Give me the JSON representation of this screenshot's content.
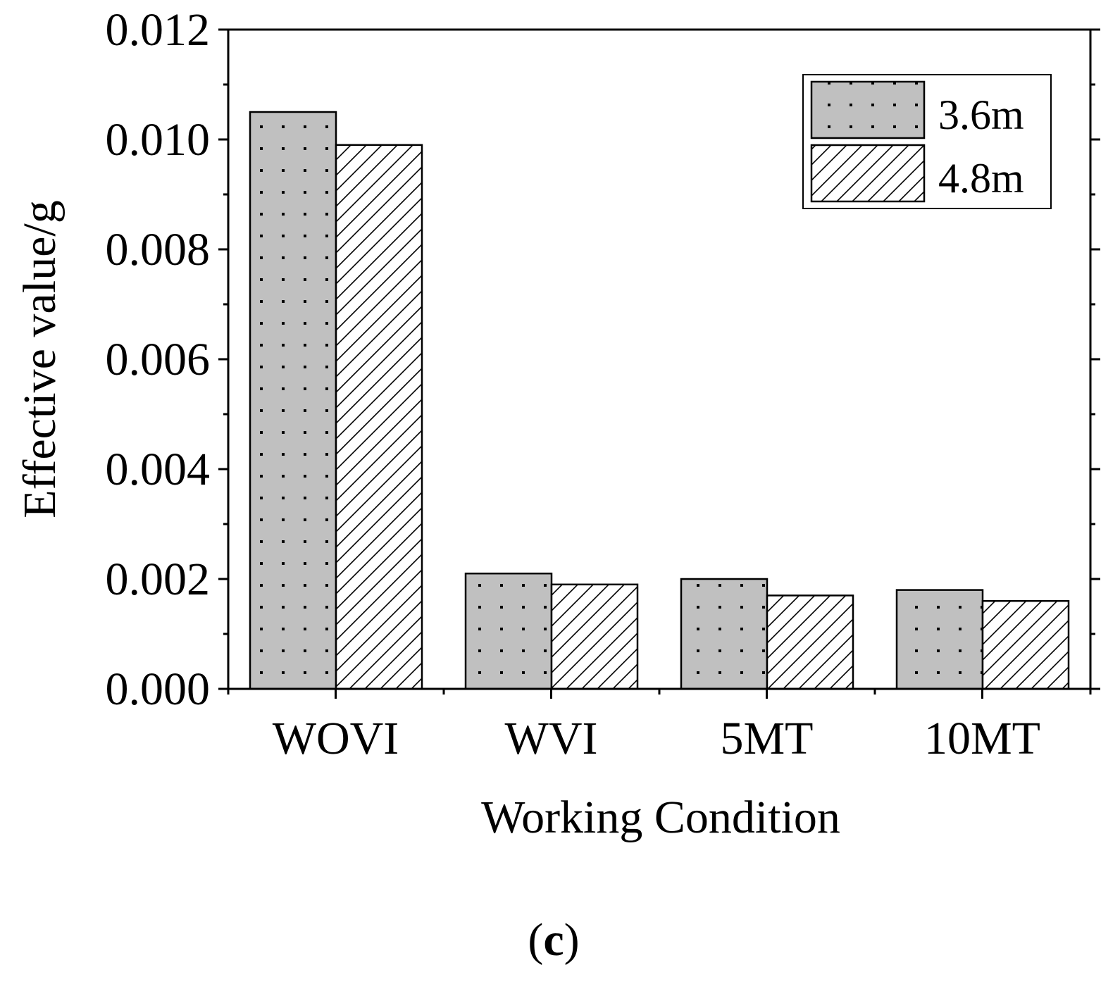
{
  "chart_data": {
    "type": "bar",
    "xlabel": "Working Condition",
    "ylabel": "Effective value/g",
    "categories": [
      "WOVI",
      "WVI",
      "5MT",
      "10MT"
    ],
    "series": [
      {
        "name": "3.6m",
        "values": [
          0.0105,
          0.0021,
          0.002,
          0.0018
        ],
        "pattern": "dots",
        "fill": "#c0c0c0"
      },
      {
        "name": "4.8m",
        "values": [
          0.0099,
          0.0019,
          0.0017,
          0.0016
        ],
        "pattern": "hatch",
        "fill": "#ffffff"
      }
    ],
    "ylim": [
      0,
      0.012
    ],
    "yticks": [
      "0.000",
      "0.002",
      "0.004",
      "0.006",
      "0.008",
      "0.010",
      "0.012"
    ],
    "legend_position": "top-right",
    "grid": false
  },
  "panel_label": {
    "open": "(",
    "letter": "c",
    "close": ")"
  }
}
